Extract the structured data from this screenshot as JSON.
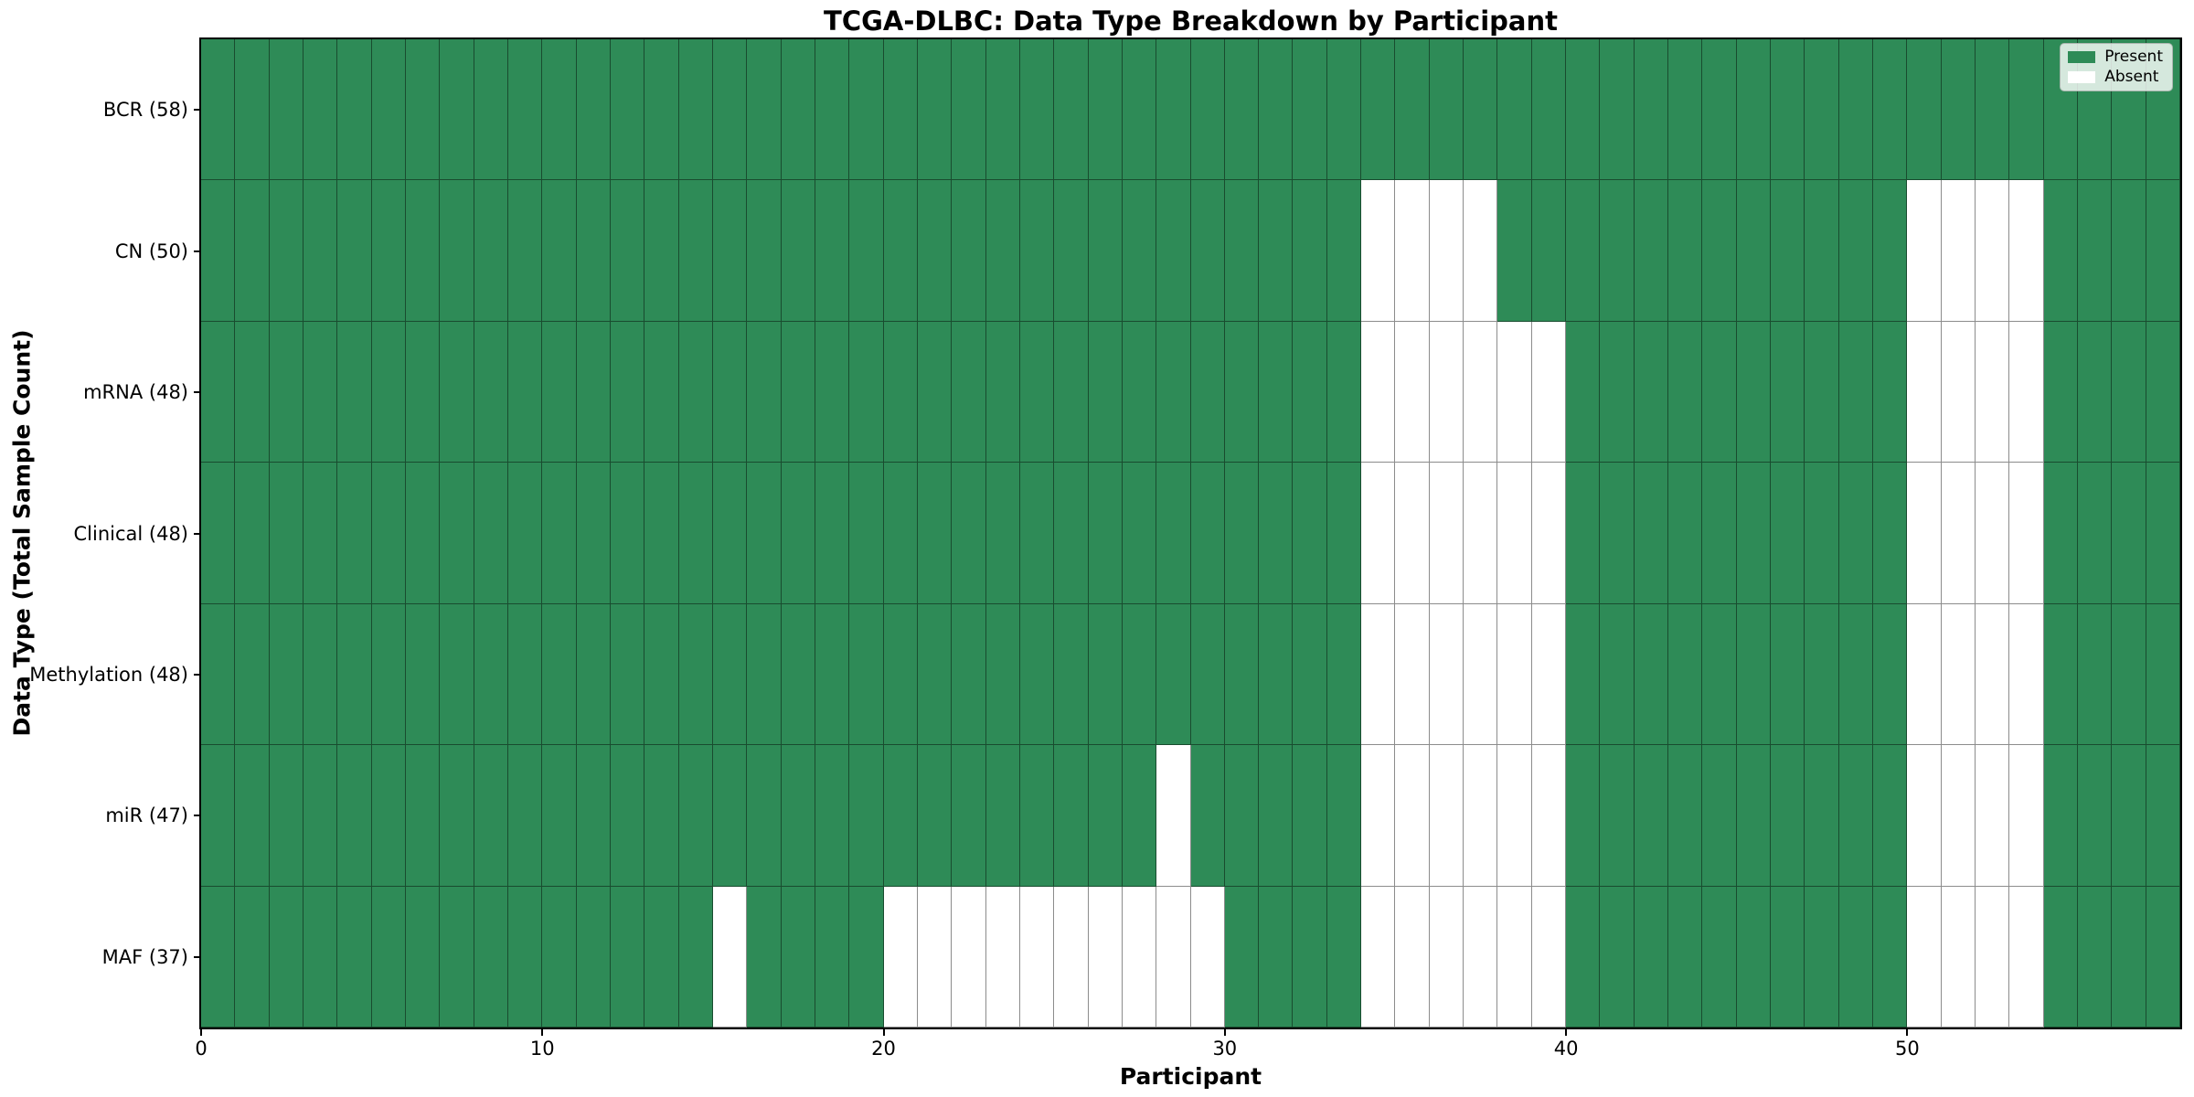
{
  "chart_data": {
    "type": "heatmap",
    "title": "TCGA-DLBC: Data Type Breakdown by Participant",
    "xlabel": "Participant",
    "ylabel": "Data Type (Total Sample Count)",
    "n_participants": 58,
    "x_ticks": [
      0,
      10,
      20,
      30,
      40,
      50
    ],
    "x_range": [
      0,
      58
    ],
    "grid": "mesh-lines between every cell",
    "legend": {
      "position": "upper right",
      "present_label": "Present",
      "absent_label": "Absent"
    },
    "colors": {
      "present": "#2E8B57",
      "absent": "#FFFFFF",
      "gridline": "rgba(0,0,0,0.45)",
      "spine": "#000000"
    },
    "rows": [
      {
        "label": "BCR (58)",
        "data_type": "BCR",
        "total": 58,
        "absent_participants": []
      },
      {
        "label": "CN (50)",
        "data_type": "CN",
        "total": 50,
        "absent_participants": [
          34,
          35,
          36,
          37,
          50,
          51,
          52,
          53
        ]
      },
      {
        "label": "mRNA (48)",
        "data_type": "mRNA",
        "total": 48,
        "absent_participants": [
          34,
          35,
          36,
          37,
          38,
          39,
          50,
          51,
          52,
          53
        ]
      },
      {
        "label": "Clinical (48)",
        "data_type": "Clinical",
        "total": 48,
        "absent_participants": [
          34,
          35,
          36,
          37,
          38,
          39,
          50,
          51,
          52,
          53
        ]
      },
      {
        "label": "Methylation (48)",
        "data_type": "Methylation",
        "total": 48,
        "absent_participants": [
          34,
          35,
          36,
          37,
          38,
          39,
          50,
          51,
          52,
          53
        ]
      },
      {
        "label": "miR (47)",
        "data_type": "miR",
        "total": 47,
        "absent_participants": [
          28,
          34,
          35,
          36,
          37,
          38,
          39,
          50,
          51,
          52,
          53
        ]
      },
      {
        "label": "MAF (37)",
        "data_type": "MAF",
        "total": 37,
        "absent_participants": [
          15,
          20,
          21,
          22,
          23,
          24,
          25,
          26,
          27,
          28,
          29,
          34,
          35,
          36,
          37,
          38,
          39,
          50,
          51,
          52,
          53
        ]
      }
    ]
  }
}
